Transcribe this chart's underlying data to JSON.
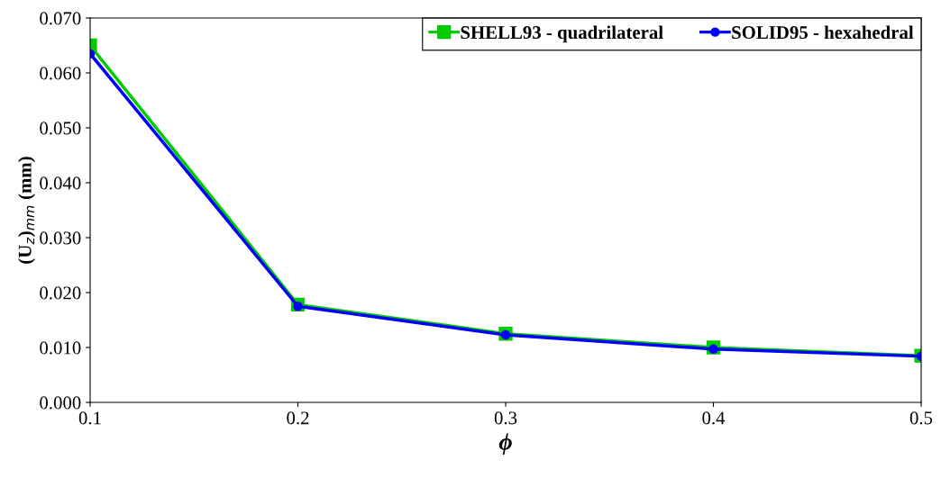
{
  "chart_data": {
    "type": "line",
    "xlabel": "ϕ",
    "ylabel": "(U$_{z}$)$_{mm}$ (mm)",
    "x": [
      0.1,
      0.2,
      0.3,
      0.4,
      0.5
    ],
    "series": [
      {
        "name": "SHELL93 - quadrilateral",
        "color": "#00cc00",
        "marker": "square",
        "values": [
          0.065,
          0.0178,
          0.0125,
          0.01,
          0.0085
        ]
      },
      {
        "name": "SOLID95 - hexahedral",
        "color": "#0000ff",
        "marker": "circle",
        "values": [
          0.0635,
          0.0175,
          0.0123,
          0.0097,
          0.0084
        ]
      }
    ],
    "xlim": [
      0.1,
      0.5
    ],
    "xticks": [
      {
        "value": 0.1,
        "label": "0.1"
      },
      {
        "value": 0.2,
        "label": "0.2"
      },
      {
        "value": 0.3,
        "label": "0.3"
      },
      {
        "value": 0.4,
        "label": "0.4"
      },
      {
        "value": 0.5,
        "label": "0.5"
      }
    ],
    "ylim": [
      0,
      0.07
    ],
    "yticks": [
      {
        "value": 0,
        "label": "0.000"
      },
      {
        "value": 0.01,
        "label": "0.010"
      },
      {
        "value": 0.02,
        "label": "0.020"
      },
      {
        "value": 0.03,
        "label": "0.030"
      },
      {
        "value": 0.04,
        "label": "0.040"
      },
      {
        "value": 0.05,
        "label": "0.050"
      },
      {
        "value": 0.06,
        "label": "0.060"
      },
      {
        "value": 0.07,
        "label": "0.070"
      }
    ],
    "grid": false,
    "legend": "top right",
    "line_style": "solid"
  }
}
